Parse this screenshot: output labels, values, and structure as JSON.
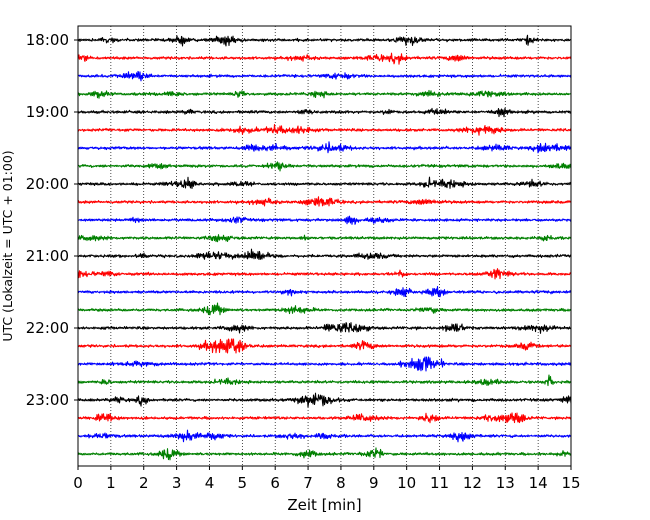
{
  "chart_data": {
    "type": "line",
    "title": "",
    "xlabel": "Zeit  [min]",
    "ylabel": "UTC (Lokalzeit = UTC + 01:00)",
    "xlim": [
      0,
      15
    ],
    "x_ticks": [
      "0",
      "1",
      "2",
      "3",
      "4",
      "5",
      "6",
      "7",
      "8",
      "9",
      "10",
      "11",
      "12",
      "13",
      "14",
      "15"
    ],
    "y_ticks": [
      "18:00",
      "19:00",
      "20:00",
      "21:00",
      "22:00",
      "23:00"
    ],
    "grid": "vertical dotted lines at each minute",
    "legend": "none",
    "trace_interval_min": 15,
    "trace_start": "18:00",
    "trace_colors": [
      "#000000",
      "#ff0000",
      "#0000ff",
      "#008000"
    ],
    "traces": [
      {
        "start": "18:00",
        "color": "#000000"
      },
      {
        "start": "18:15",
        "color": "#ff0000"
      },
      {
        "start": "18:30",
        "color": "#0000ff"
      },
      {
        "start": "18:45",
        "color": "#008000"
      },
      {
        "start": "19:00",
        "color": "#000000"
      },
      {
        "start": "19:15",
        "color": "#ff0000"
      },
      {
        "start": "19:30",
        "color": "#0000ff"
      },
      {
        "start": "19:45",
        "color": "#008000"
      },
      {
        "start": "20:00",
        "color": "#000000"
      },
      {
        "start": "20:15",
        "color": "#ff0000"
      },
      {
        "start": "20:30",
        "color": "#0000ff"
      },
      {
        "start": "20:45",
        "color": "#008000"
      },
      {
        "start": "21:00",
        "color": "#000000"
      },
      {
        "start": "21:15",
        "color": "#ff0000"
      },
      {
        "start": "21:30",
        "color": "#0000ff"
      },
      {
        "start": "21:45",
        "color": "#008000"
      },
      {
        "start": "22:00",
        "color": "#000000"
      },
      {
        "start": "22:15",
        "color": "#ff0000"
      },
      {
        "start": "22:30",
        "color": "#0000ff"
      },
      {
        "start": "22:45",
        "color": "#008000"
      },
      {
        "start": "23:00",
        "color": "#000000"
      },
      {
        "start": "23:15",
        "color": "#ff0000"
      },
      {
        "start": "23:30",
        "color": "#0000ff"
      },
      {
        "start": "23:45",
        "color": "#008000"
      }
    ]
  }
}
